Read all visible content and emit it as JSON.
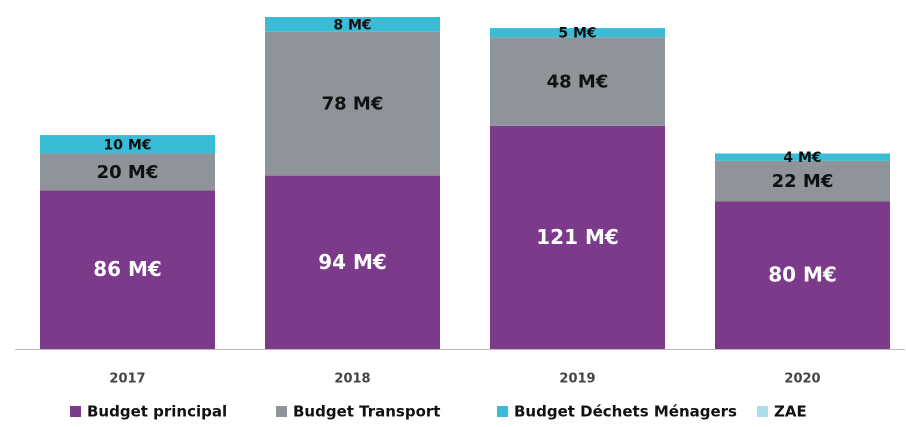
{
  "chart_data": {
    "type": "stacked-bar",
    "categories": [
      "2017",
      "2018",
      "2019",
      "2020"
    ],
    "series": [
      {
        "name": "Budget principal",
        "color": "#7b3a8a",
        "values": [
          86,
          94,
          121,
          80
        ],
        "value_labels": [
          "86 M€",
          "94 M€",
          "121 M€",
          "80 M€"
        ]
      },
      {
        "name": "Budget Transport",
        "color": "#8e9499",
        "values": [
          20,
          78,
          48,
          22
        ],
        "value_labels": [
          "20 M€",
          "78 M€",
          "48 M€",
          "22 M€"
        ]
      },
      {
        "name": "Budget Déchets Ménagers",
        "color": "#3bbcd6",
        "values": [
          10,
          8,
          5,
          4
        ],
        "value_labels": [
          "10 M€",
          "8 M€",
          "5 M€",
          "4 M€"
        ]
      },
      {
        "name": "ZAE",
        "color": "#a9dfea",
        "values": [
          0,
          0,
          0,
          0
        ]
      }
    ]
  }
}
